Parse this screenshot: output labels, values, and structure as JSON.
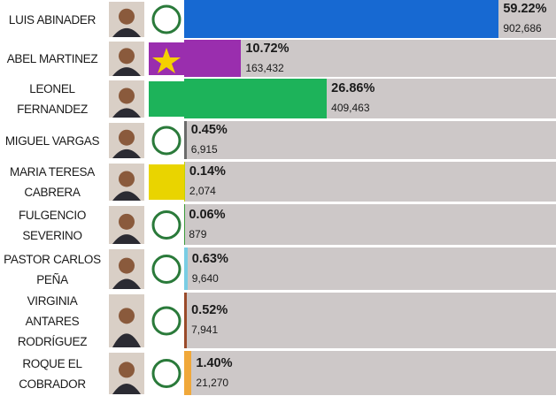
{
  "chart_data": {
    "type": "bar",
    "categories": [
      "LUIS ABINADER",
      "ABEL MARTINEZ",
      "LEONEL FERNANDEZ",
      "MIGUEL VARGAS",
      "MARIA TERESA CABRERA",
      "FULGENCIO SEVERINO",
      "PASTOR CARLOS PEÑA",
      "VIRGINIA ANTARES RODRÍGUEZ",
      "ROQUE EL COBRADOR"
    ],
    "values": [
      59.22,
      10.72,
      26.86,
      0.45,
      0.14,
      0.06,
      0.63,
      0.52,
      1.4
    ],
    "value_labels": [
      "59.22%",
      "10.72%",
      "26.86%",
      "0.45%",
      "0.14%",
      "0.06%",
      "0.63%",
      "0.52%",
      "1.40%"
    ],
    "votes": [
      "902,686",
      "163,432",
      "409,463",
      "6,915",
      "2,074",
      "879",
      "9,640",
      "7,941",
      "21,270"
    ],
    "colors": [
      "#1769d2",
      "#9a2eae",
      "#1db35a",
      "#6b6b6b",
      "#c5d300",
      "#3c9b3c",
      "#79cde3",
      "#9a4a2a",
      "#f0a83a"
    ]
  }
}
